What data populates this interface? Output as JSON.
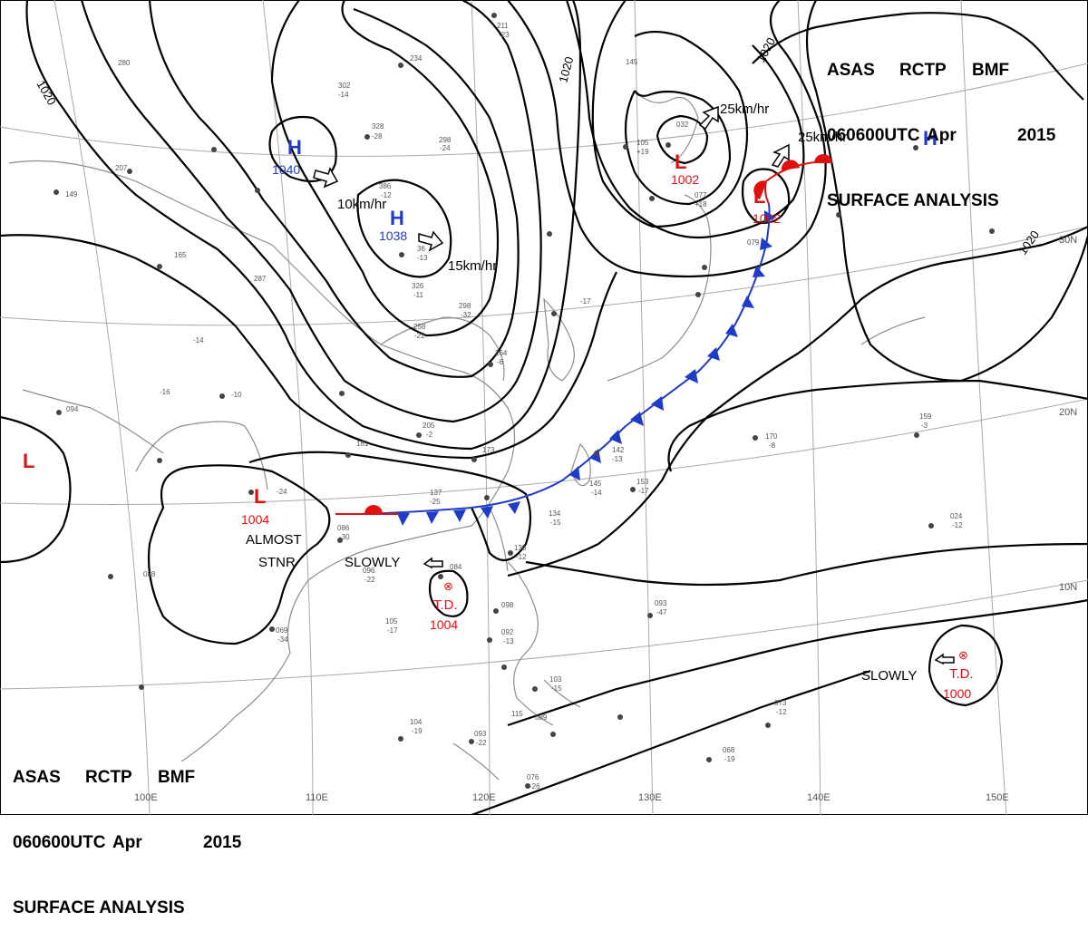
{
  "header": {
    "line1": [
      "ASAS",
      "RCTP",
      "BMF"
    ],
    "line2": [
      "060600UTC",
      "Apr",
      "2015"
    ],
    "line3": "SURFACE ANALYSIS"
  },
  "isobar_labels": [
    "1020",
    "1020",
    "1020",
    "1020"
  ],
  "pressure_systems": [
    {
      "type": "H",
      "value": "1040",
      "color": "#1e3cc8"
    },
    {
      "type": "H",
      "value": "1038",
      "color": "#1e3cc8"
    },
    {
      "type": "H",
      "value": "",
      "color": "#1e3cc8"
    },
    {
      "type": "L",
      "value": "1002",
      "color": "#e01010"
    },
    {
      "type": "L",
      "value": "1002",
      "color": "#e01010"
    },
    {
      "type": "L",
      "value": "1004",
      "color": "#e01010"
    },
    {
      "type": "L",
      "value": "",
      "color": "#e01010"
    }
  ],
  "tropical_depressions": [
    {
      "label": "T.D.",
      "value": "1004"
    },
    {
      "label": "T.D.",
      "value": "1000"
    }
  ],
  "movement_labels": [
    "10km/hr",
    "15km/hr",
    "25km/hr",
    "25km/hr",
    "SLOWLY",
    "SLOWLY"
  ],
  "almost_stnr": [
    "ALMOST",
    "STNR"
  ],
  "lat_labels": [
    "30N",
    "20N",
    "10N"
  ],
  "lon_labels": [
    "100E",
    "110E",
    "120E",
    "130E",
    "140E",
    "150E"
  ],
  "station_values": [
    "211",
    "-23",
    "234",
    "302",
    "-14",
    "328",
    "-28",
    "298",
    "-24",
    "386",
    "-12",
    "36",
    "-13",
    "326",
    "-11",
    "258",
    "-22",
    "298",
    "-32",
    "264",
    "-8",
    "205",
    "-2",
    "181",
    "173",
    "137",
    "-25",
    "142",
    "-13",
    "145",
    "-14",
    "153",
    "-17",
    "134",
    "-15",
    "138",
    "-12",
    "084",
    "098",
    "092",
    "-13",
    "103",
    "-15",
    "093",
    "-47",
    "104",
    "-19",
    "069",
    "-34",
    "088",
    "105",
    "-17",
    "096",
    "-22",
    "086",
    "-30",
    "-24",
    "094",
    "170",
    "-8",
    "159",
    "-3",
    "024",
    "-12",
    "068",
    "-19",
    "073",
    "-12",
    "076",
    "-26",
    "093",
    "-22",
    "145",
    "105",
    "+19",
    "077",
    "+18",
    "079",
    "032",
    "280",
    "207",
    "149",
    "165",
    "287",
    "-14",
    "-10",
    "-16",
    "115",
    "089",
    "-17"
  ],
  "colors": {
    "isobar": "#000000",
    "cold_front": "#1e3cc8",
    "warm_front": "#e01010",
    "coast": "#8c8c8c",
    "grid": "#a8a8a8",
    "high": "#1e3cc8",
    "low": "#e01010"
  }
}
